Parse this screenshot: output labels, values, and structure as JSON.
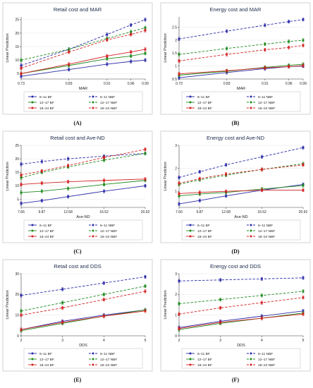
{
  "chart_data": [
    {
      "panel": "(A)",
      "type": "line",
      "title": "Retail cost and MAR",
      "xlabel": "MAR",
      "ylabel": "Linear Prediction",
      "x": [
        0.73,
        0.83,
        0.91,
        0.96,
        0.99
      ],
      "x_tick_labels": [
        "0.73",
        "0.83",
        "0.91",
        "0.96",
        "0.99"
      ],
      "xlim": [
        0.73,
        0.99
      ],
      "ylim": [
        3,
        26
      ],
      "y_ticks": [
        5,
        10,
        15,
        20,
        25
      ],
      "series": [
        {
          "name": "6–11 BF",
          "values": [
            4,
            6.5,
            8.5,
            9.5,
            10
          ],
          "color": "#2a2aa8",
          "dashed": false
        },
        {
          "name": "6–11 NBF",
          "values": [
            8,
            14,
            19.5,
            23,
            25
          ],
          "color": "#2a2aa8",
          "dashed": true
        },
        {
          "name": "12–17 BF",
          "values": [
            5,
            8,
            10.5,
            11.5,
            12.5
          ],
          "color": "#1e8a1e",
          "dashed": false
        },
        {
          "name": "12–17 NBF",
          "values": [
            10,
            14,
            18,
            20.5,
            22
          ],
          "color": "#1e8a1e",
          "dashed": true
        },
        {
          "name": "18–24 BF",
          "values": [
            5,
            8.5,
            11.5,
            13,
            14
          ],
          "color": "#d42020",
          "dashed": false
        },
        {
          "name": "18–24 NBF",
          "values": [
            7,
            13,
            17.5,
            19.5,
            21
          ],
          "color": "#d42020",
          "dashed": true
        }
      ]
    },
    {
      "panel": "(B)",
      "type": "line",
      "title": "Energy cost and MAR",
      "xlabel": "MAR",
      "ylabel": "Linear Prediction",
      "x": [
        0.73,
        0.83,
        0.91,
        0.96,
        0.99
      ],
      "x_tick_labels": [
        "0.73",
        "0.83",
        "0.91",
        "0.96",
        "0.99"
      ],
      "xlim": [
        0.73,
        0.99
      ],
      "ylim": [
        0.5,
        2.9
      ],
      "y_ticks": [
        0.5,
        1,
        1.5,
        2,
        2.5
      ],
      "series": [
        {
          "name": "6–11 BF",
          "values": [
            0.55,
            0.75,
            0.9,
            0.98,
            1.0
          ],
          "color": "#2a2aa8",
          "dashed": false
        },
        {
          "name": "6–11 NBF",
          "values": [
            2.05,
            2.35,
            2.58,
            2.72,
            2.8
          ],
          "color": "#2a2aa8",
          "dashed": true
        },
        {
          "name": "12–17 BF",
          "values": [
            0.65,
            0.8,
            0.95,
            1.03,
            1.07
          ],
          "color": "#1e8a1e",
          "dashed": false
        },
        {
          "name": "12–17 NBF",
          "values": [
            1.45,
            1.68,
            1.85,
            1.95,
            2.0
          ],
          "color": "#1e8a1e",
          "dashed": true
        },
        {
          "name": "18–24 BF",
          "values": [
            0.7,
            0.82,
            0.93,
            0.98,
            1.02
          ],
          "color": "#d42020",
          "dashed": false
        },
        {
          "name": "18–24 NBF",
          "values": [
            1.2,
            1.45,
            1.63,
            1.72,
            1.8
          ],
          "color": "#d42020",
          "dashed": true
        }
      ]
    },
    {
      "panel": "(C)",
      "type": "line",
      "title": "Retail cost and Ave-ND",
      "xlabel": "Ave-ND",
      "ylabel": "Linear Prediction",
      "x": [
        7.66,
        9.87,
        12.68,
        16.52,
        20.92
      ],
      "x_tick_labels": [
        "7.66",
        "9.87",
        "12.68",
        "16.52",
        "20.92"
      ],
      "xlim": [
        7.66,
        20.92
      ],
      "ylim": [
        2,
        25
      ],
      "y_ticks": [
        5,
        10,
        15,
        20,
        25
      ],
      "series": [
        {
          "name": "6–11 BF",
          "values": [
            3.5,
            4.5,
            6,
            8,
            10
          ],
          "color": "#2a2aa8",
          "dashed": false
        },
        {
          "name": "6–11 NBF",
          "values": [
            18,
            19,
            20,
            21,
            22
          ],
          "color": "#2a2aa8",
          "dashed": true
        },
        {
          "name": "12–17 BF",
          "values": [
            7.5,
            8,
            9,
            10.5,
            12
          ],
          "color": "#1e8a1e",
          "dashed": false
        },
        {
          "name": "12–17 NBF",
          "values": [
            13,
            15,
            17,
            19.5,
            22
          ],
          "color": "#1e8a1e",
          "dashed": true
        },
        {
          "name": "18–24 BF",
          "values": [
            10.5,
            11,
            11.5,
            12,
            12.5
          ],
          "color": "#d42020",
          "dashed": false
        },
        {
          "name": "18–24 NBF",
          "values": [
            14,
            15.5,
            17.5,
            20.5,
            23.5
          ],
          "color": "#d42020",
          "dashed": true
        }
      ]
    },
    {
      "panel": "(D)",
      "type": "line",
      "title": "Energy cost and Ave-ND",
      "xlabel": "Ave-ND",
      "ylabel": "Linear Prediction",
      "x": [
        7.66,
        9.87,
        12.68,
        16.52,
        20.92
      ],
      "x_tick_labels": [
        "7.66",
        "9.87",
        "12.68",
        "16.52",
        "20.92"
      ],
      "xlim": [
        7.66,
        20.92
      ],
      "ylim": [
        0.3,
        3.0
      ],
      "y_ticks": [
        1,
        2,
        3
      ],
      "series": [
        {
          "name": "6–11 BF",
          "values": [
            0.45,
            0.6,
            0.8,
            1.05,
            1.3
          ],
          "color": "#2a2aa8",
          "dashed": false
        },
        {
          "name": "6–11 NBF",
          "values": [
            1.6,
            1.85,
            2.15,
            2.5,
            2.9
          ],
          "color": "#2a2aa8",
          "dashed": true
        },
        {
          "name": "12–17 BF",
          "values": [
            0.8,
            0.88,
            0.95,
            1.1,
            1.25
          ],
          "color": "#1e8a1e",
          "dashed": false
        },
        {
          "name": "12–17 NBF",
          "values": [
            1.3,
            1.5,
            1.7,
            1.95,
            2.2
          ],
          "color": "#1e8a1e",
          "dashed": true
        },
        {
          "name": "18–24 BF",
          "values": [
            0.9,
            0.95,
            1.0,
            1.05,
            1.05
          ],
          "color": "#d42020",
          "dashed": false
        },
        {
          "name": "18–24 NBF",
          "values": [
            1.35,
            1.55,
            1.75,
            1.95,
            2.15
          ],
          "color": "#d42020",
          "dashed": true
        }
      ]
    },
    {
      "panel": "(E)",
      "type": "line",
      "title": "Retail cost and DDS",
      "xlabel": "DDS",
      "ylabel": "Linear Prediction",
      "x": [
        2,
        3,
        4,
        5
      ],
      "x_tick_labels": [
        "2",
        "3",
        "4",
        "5"
      ],
      "xlim": [
        2,
        5
      ],
      "ylim": [
        0,
        30
      ],
      "y_ticks": [
        0,
        10,
        20,
        30
      ],
      "series": [
        {
          "name": "6–11 BF",
          "values": [
            3,
            7,
            10,
            12.5
          ],
          "color": "#2a2aa8",
          "dashed": false
        },
        {
          "name": "6–11 NBF",
          "values": [
            19.5,
            22.5,
            25.5,
            28.5
          ],
          "color": "#2a2aa8",
          "dashed": true
        },
        {
          "name": "12–17 BF",
          "values": [
            2.5,
            6,
            9.5,
            12.5
          ],
          "color": "#1e8a1e",
          "dashed": false
        },
        {
          "name": "12–17 NBF",
          "values": [
            12,
            16,
            20,
            24
          ],
          "color": "#1e8a1e",
          "dashed": true
        },
        {
          "name": "18–24 BF",
          "values": [
            3,
            6.5,
            9.5,
            12
          ],
          "color": "#d42020",
          "dashed": false
        },
        {
          "name": "18–24 NBF",
          "values": [
            10,
            13.5,
            17.5,
            21.5
          ],
          "color": "#d42020",
          "dashed": true
        }
      ]
    },
    {
      "panel": "(F)",
      "type": "line",
      "title": "Energy cost and DDS",
      "xlabel": "DDS",
      "ylabel": "Linear Prediction",
      "x": [
        2,
        3,
        4,
        5
      ],
      "x_tick_labels": [
        "2",
        "3",
        "4",
        "5"
      ],
      "xlim": [
        2,
        5
      ],
      "ylim": [
        0,
        3
      ],
      "y_ticks": [
        0,
        1,
        2,
        3
      ],
      "series": [
        {
          "name": "6–11 BF",
          "values": [
            0.4,
            0.7,
            0.95,
            1.2
          ],
          "color": "#2a2aa8",
          "dashed": false
        },
        {
          "name": "6–11 NBF",
          "values": [
            2.65,
            2.7,
            2.75,
            2.8
          ],
          "color": "#2a2aa8",
          "dashed": true
        },
        {
          "name": "12–17 BF",
          "values": [
            0.3,
            0.6,
            0.85,
            1.1
          ],
          "color": "#1e8a1e",
          "dashed": false
        },
        {
          "name": "12–17 NBF",
          "values": [
            1.55,
            1.75,
            1.95,
            2.15
          ],
          "color": "#1e8a1e",
          "dashed": true
        },
        {
          "name": "18–24 BF",
          "values": [
            0.35,
            0.65,
            0.85,
            1.05
          ],
          "color": "#d42020",
          "dashed": false
        },
        {
          "name": "18–24 NBF",
          "values": [
            1.05,
            1.35,
            1.6,
            1.85
          ],
          "color": "#d42020",
          "dashed": true
        }
      ]
    }
  ]
}
